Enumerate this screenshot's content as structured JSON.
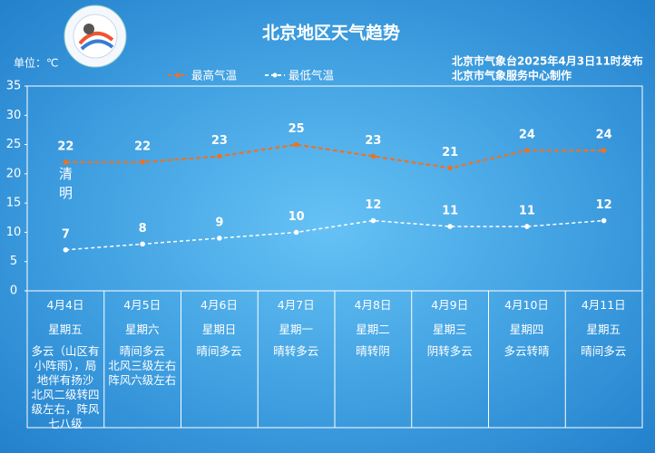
{
  "chart_data": {
    "type": "line",
    "title": "北京地区天气趋势",
    "unit_label": "单位：℃",
    "issuer": [
      "北京市气象台2025年4月3日11时发布",
      "北京市气象服务中心制作"
    ],
    "categories": [
      "4月4日",
      "4月5日",
      "4月6日",
      "4月7日",
      "4月8日",
      "4月9日",
      "4月10日",
      "4月11日"
    ],
    "weekdays": [
      "星期五",
      "星期六",
      "星期日",
      "星期一",
      "星期二",
      "星期三",
      "星期四",
      "星期五"
    ],
    "weather": [
      "多云（山区有\n小阵雨），局\n地伴有扬沙\n北风二级转四\n级左右，阵风\n七八级",
      "晴间多云\n北风三级左右\n阵风六级左右",
      "晴间多云",
      "晴转多云",
      "晴转阴",
      "阴转多云",
      "多云转晴",
      "晴间多云"
    ],
    "annotation": "清明",
    "series": [
      {
        "name": "最高气温",
        "color": "#e8732a",
        "values": [
          22,
          22,
          23,
          25,
          23,
          21,
          24,
          24
        ]
      },
      {
        "name": "最低气温",
        "color": "#ffffff",
        "values": [
          7,
          8,
          9,
          10,
          12,
          11,
          11,
          12
        ]
      }
    ],
    "ylim": [
      0,
      35
    ],
    "yticks": [
      0,
      5,
      10,
      15,
      20,
      25,
      30,
      35
    ]
  }
}
